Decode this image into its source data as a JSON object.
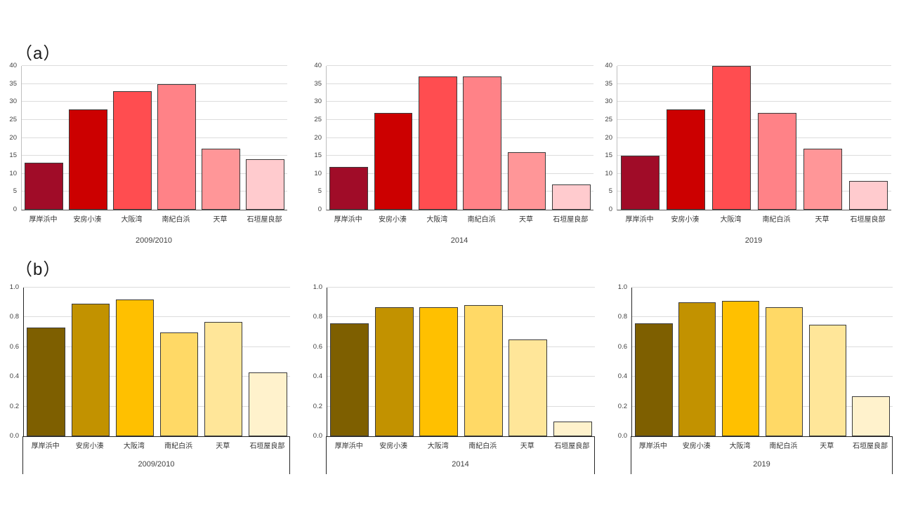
{
  "panels": {
    "a_label": "（a）",
    "b_label": "（b）"
  },
  "colors": {
    "grid": "#DCDCDC",
    "bar_border": "#3A3A3A",
    "axis_gray": "#BFBFBF",
    "axis_dark": "#262626",
    "text": "#404040"
  },
  "chart_data": [
    {
      "type": "bar",
      "panel": "a",
      "title": "2009/2010",
      "categories": [
        "厚岸浜中",
        "安房小湊",
        "大阪湾",
        "南紀白浜",
        "天草",
        "石垣屋良部"
      ],
      "values": [
        13,
        28,
        33,
        35,
        17,
        14
      ],
      "bar_colors": [
        "#A00C28",
        "#CC0000",
        "#FF4D50",
        "#FF8287",
        "#FF9698",
        "#FFCBCE"
      ],
      "xlabel": "",
      "ylabel": "",
      "ylim": [
        0,
        40
      ],
      "ytick_step": 5,
      "ytick_decimals": 0,
      "grid": true,
      "frame": false,
      "legend": "none"
    },
    {
      "type": "bar",
      "panel": "a",
      "title": "2014",
      "categories": [
        "厚岸浜中",
        "安房小湊",
        "大阪湾",
        "南紀白浜",
        "天草",
        "石垣屋良部"
      ],
      "values": [
        12,
        27,
        37,
        37,
        16,
        7
      ],
      "bar_colors": [
        "#A00C28",
        "#CC0000",
        "#FF4D50",
        "#FF8287",
        "#FF9698",
        "#FFCBCE"
      ],
      "xlabel": "",
      "ylabel": "",
      "ylim": [
        0,
        40
      ],
      "ytick_step": 5,
      "ytick_decimals": 0,
      "grid": true,
      "frame": false,
      "legend": "none"
    },
    {
      "type": "bar",
      "panel": "a",
      "title": "2019",
      "categories": [
        "厚岸浜中",
        "安房小湊",
        "大阪湾",
        "南紀白浜",
        "天草",
        "石垣屋良部"
      ],
      "values": [
        15,
        28,
        40,
        27,
        17,
        8
      ],
      "bar_colors": [
        "#A00C28",
        "#CC0000",
        "#FF4D50",
        "#FF8287",
        "#FF9698",
        "#FFCBCE"
      ],
      "xlabel": "",
      "ylabel": "",
      "ylim": [
        0,
        40
      ],
      "ytick_step": 5,
      "ytick_decimals": 0,
      "grid": true,
      "frame": false,
      "legend": "none"
    },
    {
      "type": "bar",
      "panel": "b",
      "title": "2009/2010",
      "categories": [
        "厚岸浜中",
        "安房小湊",
        "大阪湾",
        "南紀白浜",
        "天草",
        "石垣屋良部"
      ],
      "values": [
        0.73,
        0.89,
        0.92,
        0.7,
        0.77,
        0.43
      ],
      "bar_colors": [
        "#7E5F00",
        "#C29200",
        "#FFC000",
        "#FFD966",
        "#FFE699",
        "#FFF2CC"
      ],
      "xlabel": "",
      "ylabel": "",
      "ylim": [
        0,
        1.0
      ],
      "ytick_step": 0.2,
      "ytick_decimals": 1,
      "grid": true,
      "frame": true,
      "legend": "none"
    },
    {
      "type": "bar",
      "panel": "b",
      "title": "2014",
      "categories": [
        "厚岸浜中",
        "安房小湊",
        "大阪湾",
        "南紀白浜",
        "天草",
        "石垣屋良部"
      ],
      "values": [
        0.76,
        0.87,
        0.87,
        0.88,
        0.65,
        0.1
      ],
      "bar_colors": [
        "#7E5F00",
        "#C29200",
        "#FFC000",
        "#FFD966",
        "#FFE699",
        "#FFF2CC"
      ],
      "xlabel": "",
      "ylabel": "",
      "ylim": [
        0,
        1.0
      ],
      "ytick_step": 0.2,
      "ytick_decimals": 1,
      "grid": true,
      "frame": true,
      "legend": "none"
    },
    {
      "type": "bar",
      "panel": "b",
      "title": "2019",
      "categories": [
        "厚岸浜中",
        "安房小湊",
        "大阪湾",
        "南紀白浜",
        "天草",
        "石垣屋良部"
      ],
      "values": [
        0.76,
        0.9,
        0.91,
        0.87,
        0.75,
        0.27
      ],
      "bar_colors": [
        "#7E5F00",
        "#C29200",
        "#FFC000",
        "#FFD966",
        "#FFE699",
        "#FFF2CC"
      ],
      "xlabel": "",
      "ylabel": "",
      "ylim": [
        0,
        1.0
      ],
      "ytick_step": 0.2,
      "ytick_decimals": 1,
      "grid": true,
      "frame": true,
      "legend": "none"
    }
  ]
}
